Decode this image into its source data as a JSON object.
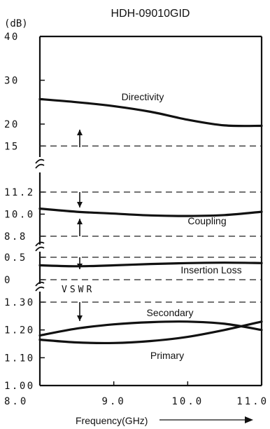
{
  "chart_data": {
    "type": "line",
    "title": "HDH-09010GID",
    "y_unit": "(dB)",
    "xlabel": "Frequency(GHz)",
    "x_ticks": [
      "8.0",
      "9.0",
      "10.0",
      "11.0"
    ],
    "xlim": [
      8.0,
      11.0
    ],
    "grid": false,
    "panels": [
      {
        "name": "directivity",
        "ylim": [
          15,
          40
        ],
        "y_ticks": [
          "40",
          "30",
          "20",
          "15"
        ],
        "limit_line": 15,
        "series": [
          {
            "name": "Directivity",
            "x": [
              8.0,
              8.5,
              9.0,
              9.5,
              10.0,
              10.5,
              11.0
            ],
            "y": [
              25.7,
              25.0,
              24.1,
              22.8,
              21.0,
              19.7,
              19.6
            ]
          }
        ]
      },
      {
        "name": "coupling",
        "ylim": [
          8.8,
          11.2
        ],
        "y_ticks": [
          "11.2",
          "10.0",
          "8.8"
        ],
        "limit_lines": [
          11.2,
          8.8
        ],
        "series": [
          {
            "name": "Coupling",
            "x": [
              8.0,
              8.5,
              9.0,
              9.5,
              10.0,
              10.5,
              11.0
            ],
            "y": [
              10.3,
              10.13,
              10.03,
              9.93,
              9.9,
              9.95,
              10.13
            ]
          }
        ]
      },
      {
        "name": "insertion-loss",
        "ylim": [
          0,
          0.5
        ],
        "y_ticks": [
          "0.5",
          "0"
        ],
        "limit_line": 0.5,
        "series": [
          {
            "name": "Insertion Loss",
            "x": [
              8.0,
              8.5,
              9.0,
              9.5,
              10.0,
              10.5,
              11.0
            ],
            "y": [
              0.32,
              0.3,
              0.32,
              0.35,
              0.37,
              0.38,
              0.37
            ]
          }
        ]
      },
      {
        "name": "vswr",
        "label": "VSWR",
        "ylim": [
          1.0,
          1.3
        ],
        "y_ticks": [
          "1.30",
          "1.20",
          "1.10",
          "1.00"
        ],
        "limit_line": 1.3,
        "series": [
          {
            "name": "Secondary",
            "x": [
              8.0,
              8.5,
              9.0,
              9.5,
              10.0,
              10.5,
              11.0
            ],
            "y": [
              1.18,
              1.205,
              1.22,
              1.228,
              1.23,
              1.222,
              1.2
            ]
          },
          {
            "name": "Primary",
            "x": [
              8.0,
              8.5,
              9.0,
              9.5,
              10.0,
              10.5,
              11.0
            ],
            "y": [
              1.165,
              1.155,
              1.153,
              1.16,
              1.175,
              1.2,
              1.23
            ]
          }
        ]
      }
    ]
  }
}
